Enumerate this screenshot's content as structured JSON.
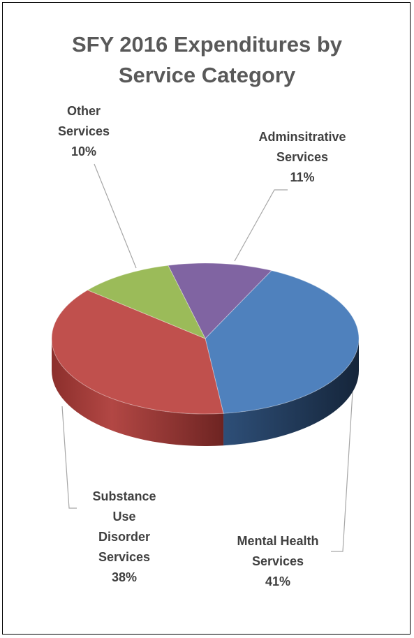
{
  "chart_data": {
    "type": "pie",
    "title_lines": [
      "SFY 2016 Expenditures by",
      "Service Category"
    ],
    "slices": [
      {
        "name": "Adminsitrative Services",
        "label_lines": [
          "Adminsitrative",
          "Services"
        ],
        "percent_label": "11%",
        "value": 11,
        "color": "#8064A2"
      },
      {
        "name": "Mental Health Services",
        "label_lines": [
          "Mental Health",
          "Services"
        ],
        "percent_label": "41%",
        "value": 41,
        "color": "#4F81BD"
      },
      {
        "name": "Substance Use Disorder Services",
        "label_lines": [
          "Substance",
          "Use",
          "Disorder",
          "Services"
        ],
        "percent_label": "38%",
        "value": 38,
        "color": "#C0504D"
      },
      {
        "name": "Other Services",
        "label_lines": [
          "Other",
          "Services"
        ],
        "percent_label": "10%",
        "value": 10,
        "color": "#9BBB59"
      }
    ]
  }
}
